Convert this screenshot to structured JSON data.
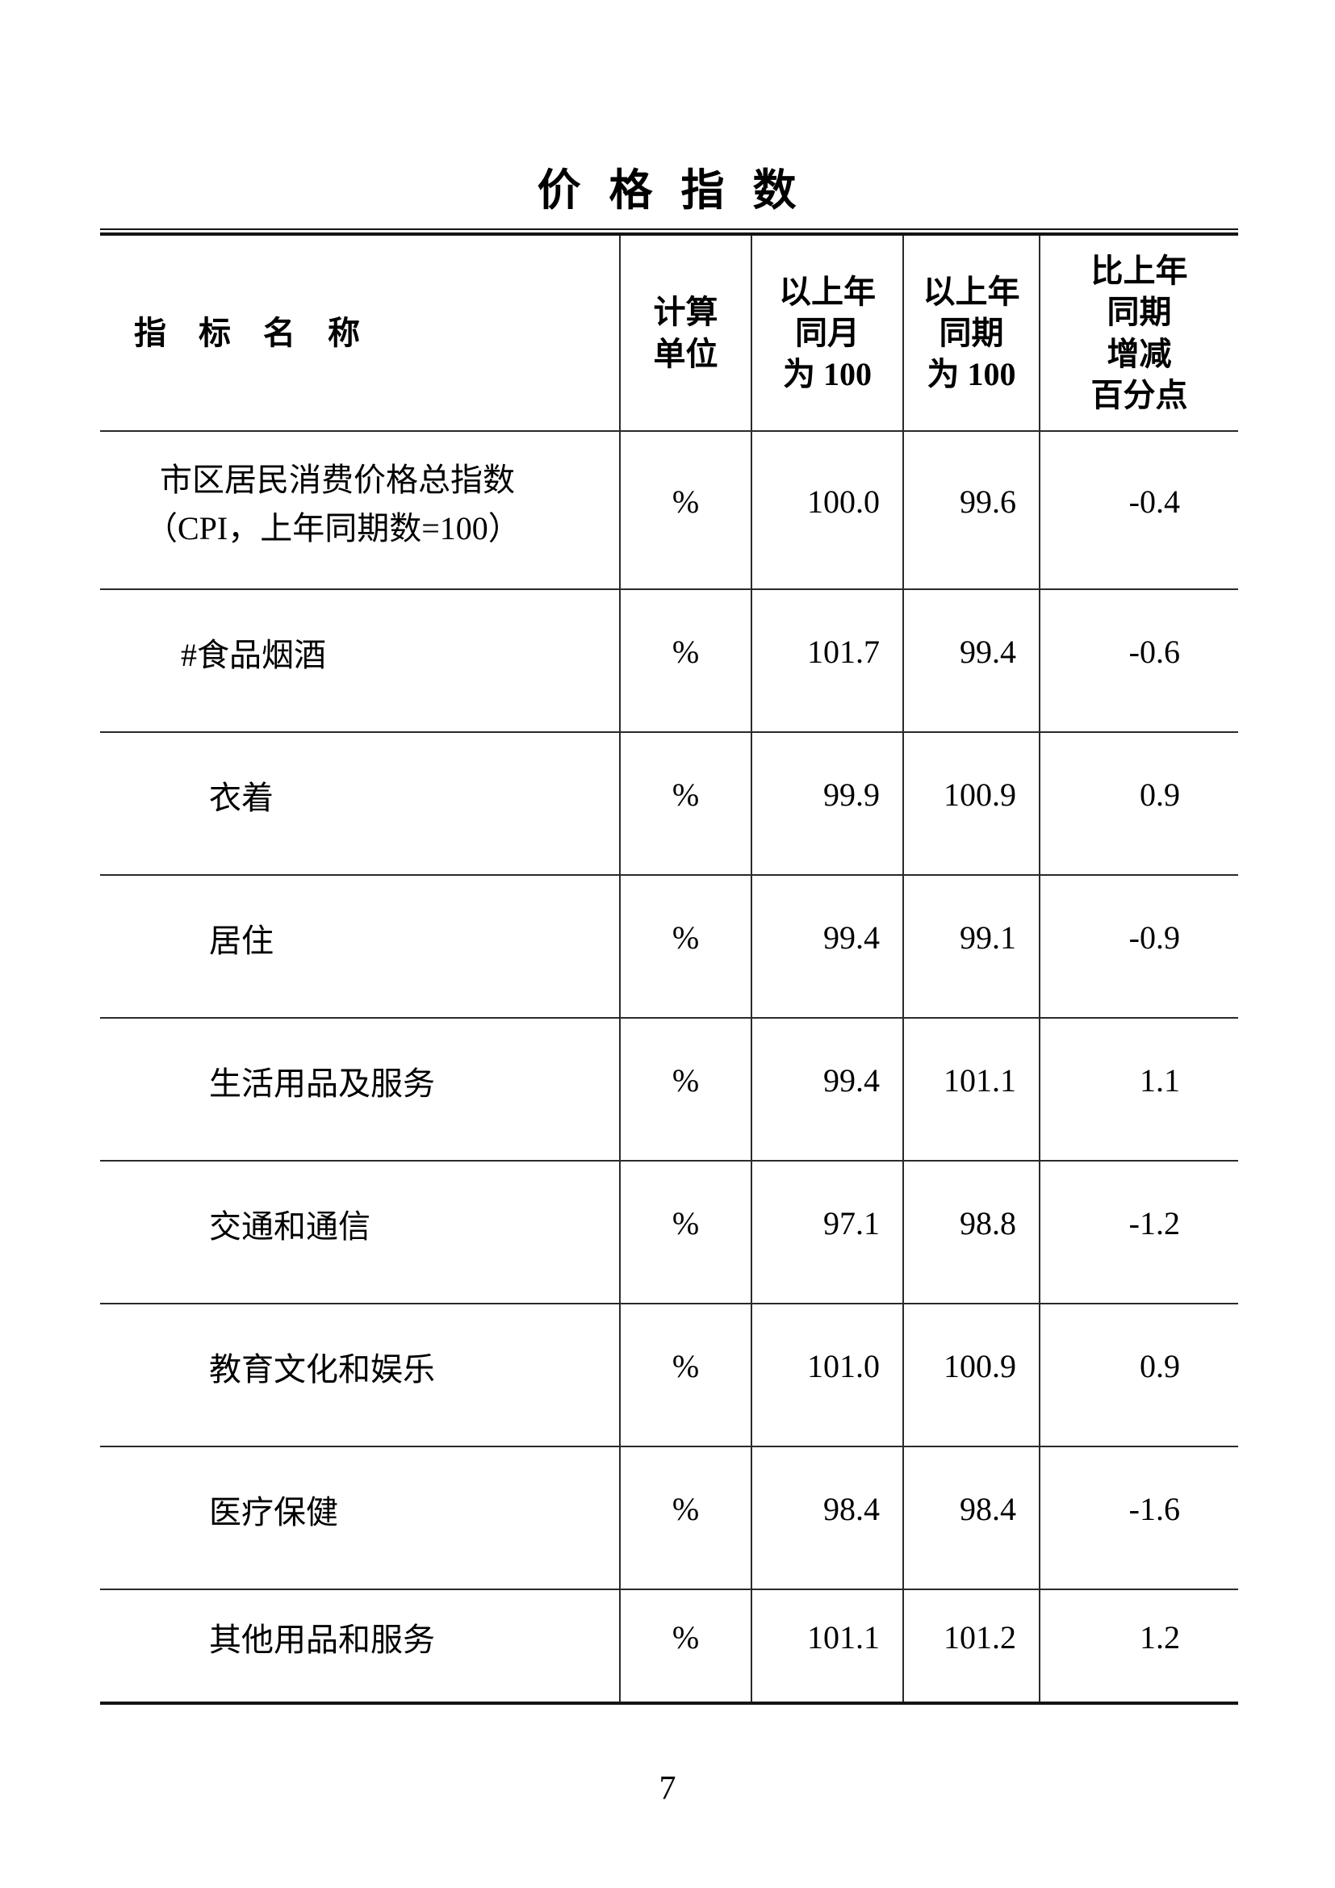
{
  "page": {
    "title": "价 格 指 数",
    "page_number": "7"
  },
  "table": {
    "headers": {
      "indicator": "指　标　名　称",
      "unit": "计算\n单位",
      "vs_same_month_last_year": "以上年\n同月\n为 100",
      "vs_same_period_last_year": "以上年\n同期\n为 100",
      "change_pct_points": "比上年\n同期\n增减\n百分点"
    },
    "rows": [
      {
        "name": "市区居民消费价格总指数",
        "name_line2": "（CPI，上年同期数=100）",
        "unit": "%",
        "vs_month": "100.0",
        "vs_period": "99.6",
        "change": "-0.4"
      },
      {
        "name": "#食品烟酒",
        "unit": "%",
        "vs_month": "101.7",
        "vs_period": "99.4",
        "change": "-0.6"
      },
      {
        "name": "衣着",
        "unit": "%",
        "vs_month": "99.9",
        "vs_period": "100.9",
        "change": "0.9"
      },
      {
        "name": "居住",
        "unit": "%",
        "vs_month": "99.4",
        "vs_period": "99.1",
        "change": "-0.9"
      },
      {
        "name": "生活用品及服务",
        "unit": "%",
        "vs_month": "99.4",
        "vs_period": "101.1",
        "change": "1.1"
      },
      {
        "name": "交通和通信",
        "unit": "%",
        "vs_month": "97.1",
        "vs_period": "98.8",
        "change": "-1.2"
      },
      {
        "name": "教育文化和娱乐",
        "unit": "%",
        "vs_month": "101.0",
        "vs_period": "100.9",
        "change": "0.9"
      },
      {
        "name": "医疗保健",
        "unit": "%",
        "vs_month": "98.4",
        "vs_period": "98.4",
        "change": "-1.6"
      },
      {
        "name": "其他用品和服务",
        "unit": "%",
        "vs_month": "101.1",
        "vs_period": "101.2",
        "change": "1.2"
      }
    ]
  }
}
